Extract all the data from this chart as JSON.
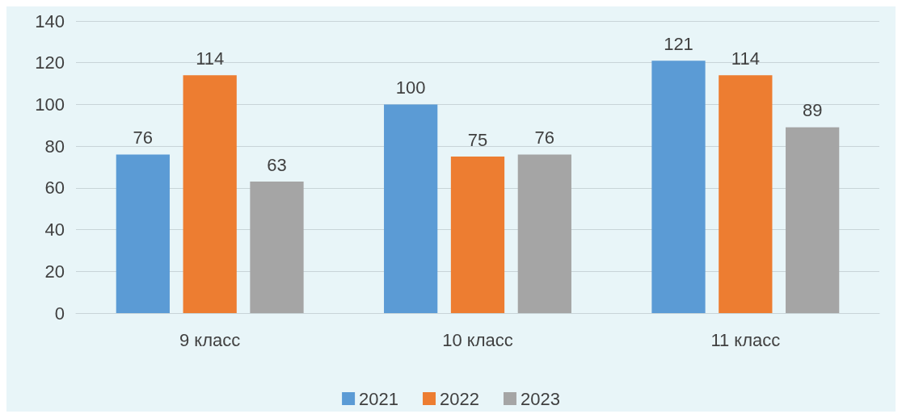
{
  "chart_data": {
    "type": "bar",
    "categories": [
      "9 класс",
      "10 класс",
      "11 класс"
    ],
    "series": [
      {
        "name": "2021",
        "color": "#5b9bd5",
        "values": [
          76,
          100,
          121
        ]
      },
      {
        "name": "2022",
        "color": "#ed7d31",
        "values": [
          114,
          75,
          114
        ]
      },
      {
        "name": "2023",
        "color": "#a5a5a5",
        "values": [
          63,
          76,
          89
        ]
      }
    ],
    "ylim": [
      0,
      140
    ],
    "yticks": [
      0,
      20,
      40,
      60,
      80,
      100,
      120,
      140
    ],
    "grid": "y",
    "legend": "bottom",
    "data_labels": true
  }
}
